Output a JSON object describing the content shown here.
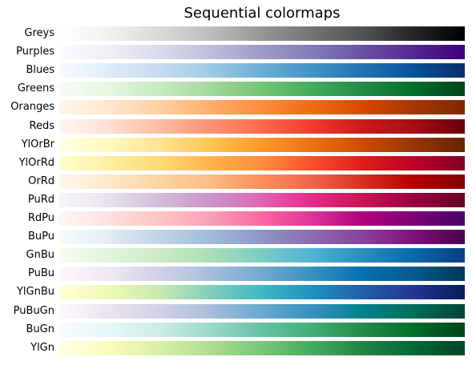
{
  "chart_data": {
    "type": "heatmap",
    "title": "Sequential colormaps",
    "xlabel": "",
    "ylabel": "",
    "grid": false,
    "colormaps": [
      {
        "name": "Greys",
        "stops": [
          "#ffffff",
          "#f0f0f0",
          "#d9d9d9",
          "#bdbdbd",
          "#969696",
          "#737373",
          "#525252",
          "#252525",
          "#000000"
        ]
      },
      {
        "name": "Purples",
        "stops": [
          "#fcfbfd",
          "#efedf5",
          "#dadaeb",
          "#bcbddc",
          "#9e9ac8",
          "#807dba",
          "#6a51a3",
          "#54278f",
          "#3f007d"
        ]
      },
      {
        "name": "Blues",
        "stops": [
          "#f7fbff",
          "#deebf7",
          "#c6dbef",
          "#9ecae1",
          "#6baed6",
          "#4292c6",
          "#2171b5",
          "#08519c",
          "#08306b"
        ]
      },
      {
        "name": "Greens",
        "stops": [
          "#f7fcf5",
          "#e5f5e0",
          "#c7e9c0",
          "#a1d99b",
          "#74c476",
          "#41ab5d",
          "#238b45",
          "#006d2c",
          "#00441b"
        ]
      },
      {
        "name": "Oranges",
        "stops": [
          "#fff5eb",
          "#fee6ce",
          "#fdd0a2",
          "#fdae6b",
          "#fd8d3c",
          "#f16913",
          "#d94801",
          "#a63603",
          "#7f2704"
        ]
      },
      {
        "name": "Reds",
        "stops": [
          "#fff5f0",
          "#fee0d2",
          "#fcbba1",
          "#fc9272",
          "#fb6a4a",
          "#ef3b2c",
          "#cb181d",
          "#a50f15",
          "#67000d"
        ]
      },
      {
        "name": "YlOrBr",
        "stops": [
          "#ffffe5",
          "#fff7bc",
          "#fee391",
          "#fec44f",
          "#fe9929",
          "#ec7014",
          "#cc4c02",
          "#993404",
          "#662506"
        ]
      },
      {
        "name": "YlOrRd",
        "stops": [
          "#ffffcc",
          "#ffeda0",
          "#fed976",
          "#feb24c",
          "#fd8d3c",
          "#fc4e2a",
          "#e31a1c",
          "#bd0026",
          "#800026"
        ]
      },
      {
        "name": "OrRd",
        "stops": [
          "#fff7ec",
          "#fee8c8",
          "#fdd49e",
          "#fdbb84",
          "#fc8d59",
          "#ef6548",
          "#d7301f",
          "#b30000",
          "#7f0000"
        ]
      },
      {
        "name": "PuRd",
        "stops": [
          "#f7f4f9",
          "#e7e1ef",
          "#d4b9da",
          "#c994c7",
          "#df65b0",
          "#e7298a",
          "#ce1256",
          "#980043",
          "#67001f"
        ]
      },
      {
        "name": "RdPu",
        "stops": [
          "#fff7f3",
          "#fde0dd",
          "#fcc5c0",
          "#fa9fb5",
          "#f768a1",
          "#dd3497",
          "#ae017e",
          "#7a0177",
          "#49006a"
        ]
      },
      {
        "name": "BuPu",
        "stops": [
          "#f7fcfd",
          "#e0ecf4",
          "#bfd3e6",
          "#9ebcda",
          "#8c96c6",
          "#8c6bb1",
          "#88419d",
          "#810f7c",
          "#4d004b"
        ]
      },
      {
        "name": "GnBu",
        "stops": [
          "#f7fcf0",
          "#e0f3db",
          "#ccebc5",
          "#a8ddb5",
          "#7bccc4",
          "#4eb3d3",
          "#2b8cbe",
          "#0868ac",
          "#084081"
        ]
      },
      {
        "name": "PuBu",
        "stops": [
          "#fff7fb",
          "#ece7f2",
          "#d0d1e6",
          "#a6bddb",
          "#74a9cf",
          "#3690c0",
          "#0570b0",
          "#045a8d",
          "#023858"
        ]
      },
      {
        "name": "YlGnBu",
        "stops": [
          "#ffffd9",
          "#edf8b1",
          "#c7e9b4",
          "#7fcdbb",
          "#41b6c4",
          "#1d91c0",
          "#225ea8",
          "#253494",
          "#081d58"
        ]
      },
      {
        "name": "PuBuGn",
        "stops": [
          "#fff7fb",
          "#ece2f0",
          "#d0d1e6",
          "#a6bddb",
          "#67a9cf",
          "#3690c0",
          "#02818a",
          "#016c59",
          "#014636"
        ]
      },
      {
        "name": "BuGn",
        "stops": [
          "#f7fcfd",
          "#e5f5f9",
          "#ccece6",
          "#99d8c9",
          "#66c2a4",
          "#41ae76",
          "#238b45",
          "#006d2c",
          "#00441b"
        ]
      },
      {
        "name": "YlGn",
        "stops": [
          "#ffffe5",
          "#f7fcb9",
          "#d9f0a3",
          "#addd8e",
          "#78c679",
          "#41ab5d",
          "#238443",
          "#006837",
          "#004529"
        ]
      }
    ]
  }
}
